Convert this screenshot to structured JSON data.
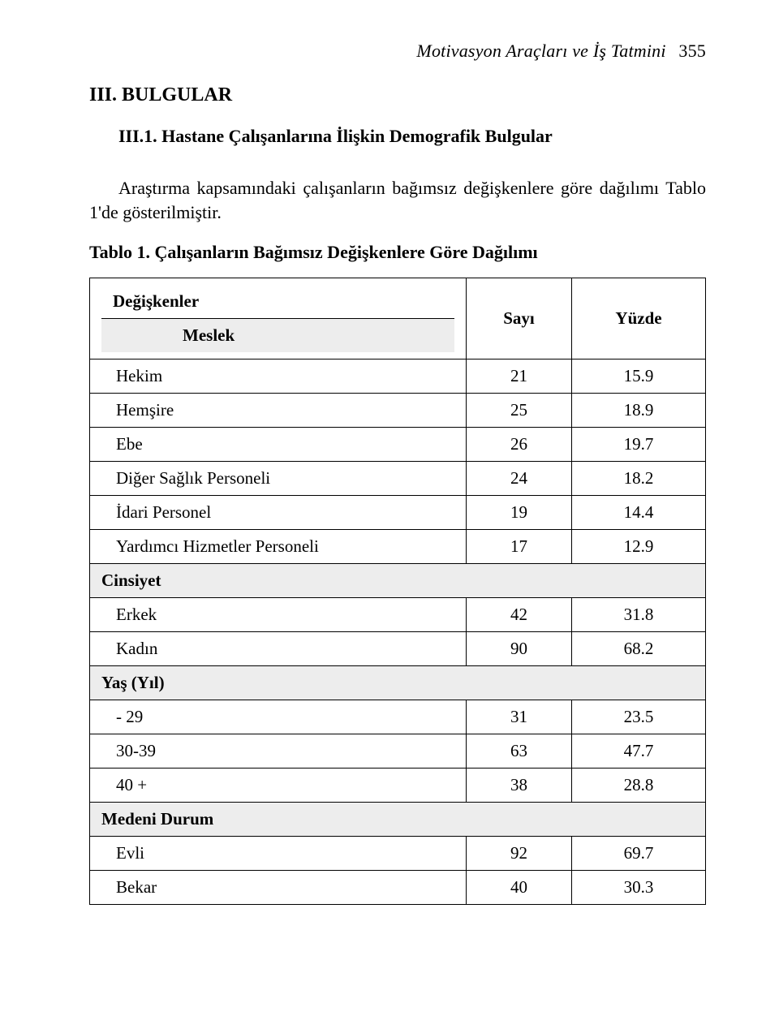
{
  "running_head": {
    "title": "Motivasyon Araçları ve İş Tatmini",
    "page_no": "355"
  },
  "h1": "III. BULGULAR",
  "h2": "III.1. Hastane Çalışanlarına İlişkin Demografik Bulgular",
  "intro": "Araştırma kapsamındaki çalışanların bağımsız değişkenlere göre dağılımı Tablo 1'de gösterilmiştir.",
  "table_caption": "Tablo 1. Çalışanların Bağımsız Değişkenlere Göre Dağılımı",
  "table": {
    "type": "table",
    "header": {
      "var_label": "Değişkenler",
      "meslek_label": "Meslek",
      "count_label": "Sayı",
      "pct_label": "Yüzde"
    },
    "colors": {
      "border": "#000000",
      "section_bg": "#ededed",
      "bg": "#ffffff",
      "text": "#000000"
    },
    "fontsize": 21,
    "sections": [
      {
        "rows": [
          {
            "label": "Hekim",
            "count": "21",
            "pct": "15.9"
          },
          {
            "label": "Hemşire",
            "count": "25",
            "pct": "18.9"
          },
          {
            "label": "Ebe",
            "count": "26",
            "pct": "19.7"
          },
          {
            "label": "Diğer Sağlık Personeli",
            "count": "24",
            "pct": "18.2"
          },
          {
            "label": "İdari Personel",
            "count": "19",
            "pct": "14.4"
          },
          {
            "label": "Yardımcı Hizmetler Personeli",
            "count": "17",
            "pct": "12.9"
          }
        ]
      },
      {
        "title": "Cinsiyet",
        "rows": [
          {
            "label": "Erkek",
            "count": "42",
            "pct": "31.8"
          },
          {
            "label": "Kadın",
            "count": "90",
            "pct": "68.2"
          }
        ]
      },
      {
        "title": "Yaş (Yıl)",
        "rows": [
          {
            "label": "- 29",
            "count": "31",
            "pct": "23.5"
          },
          {
            "label": "30-39",
            "count": "63",
            "pct": "47.7"
          },
          {
            "label": "40 +",
            "count": "38",
            "pct": "28.8"
          }
        ]
      },
      {
        "title": "Medeni Durum",
        "rows": [
          {
            "label": "Evli",
            "count": "92",
            "pct": "69.7"
          },
          {
            "label": "Bekar",
            "count": "40",
            "pct": "30.3"
          }
        ]
      }
    ]
  }
}
